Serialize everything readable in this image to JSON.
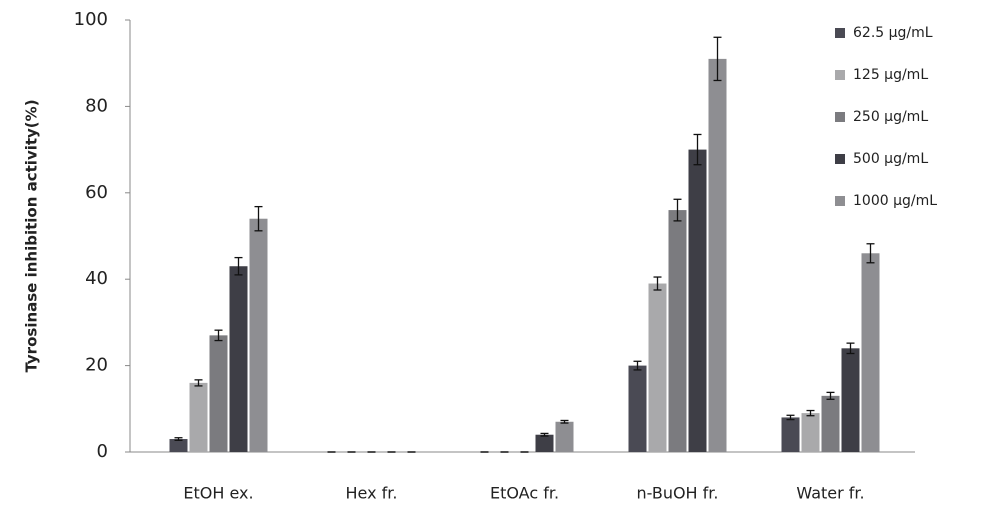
{
  "chart_data": {
    "type": "bar",
    "y_label": "Tyrosinase inhibition activity(%)",
    "categories": [
      "EtOH ex.",
      "Hex fr.",
      "EtOAc fr.",
      "n-BuOH fr.",
      "Water fr."
    ],
    "series": [
      {
        "name": "62.5  μg/mL",
        "color": "#4a4a54",
        "values": [
          3,
          0,
          0,
          20,
          8
        ],
        "errors": [
          0.3,
          0,
          0,
          1,
          0.5
        ]
      },
      {
        "name": "125  μg/mL",
        "color": "#a9a9ab",
        "values": [
          16,
          0,
          0,
          39,
          9
        ],
        "errors": [
          0.7,
          0,
          0,
          1.5,
          0.6
        ]
      },
      {
        "name": "250  μg/mL",
        "color": "#7b7b7f",
        "values": [
          27,
          0,
          0,
          56,
          13
        ],
        "errors": [
          1.2,
          0,
          0,
          2.5,
          0.8
        ]
      },
      {
        "name": "500  μg/mL",
        "color": "#3e3e46",
        "values": [
          43,
          0,
          4,
          70,
          24
        ],
        "errors": [
          2,
          0,
          0.3,
          3.5,
          1.2
        ]
      },
      {
        "name": "1000  μg/mL",
        "color": "#8e8e92",
        "values": [
          54,
          0,
          7,
          91,
          46
        ],
        "errors": [
          2.8,
          0,
          0.3,
          5,
          2.2
        ]
      }
    ],
    "ylim": [
      0,
      100
    ],
    "yticks": [
      0,
      20,
      40,
      60,
      80,
      100
    ],
    "grid": false,
    "legend": "right"
  }
}
